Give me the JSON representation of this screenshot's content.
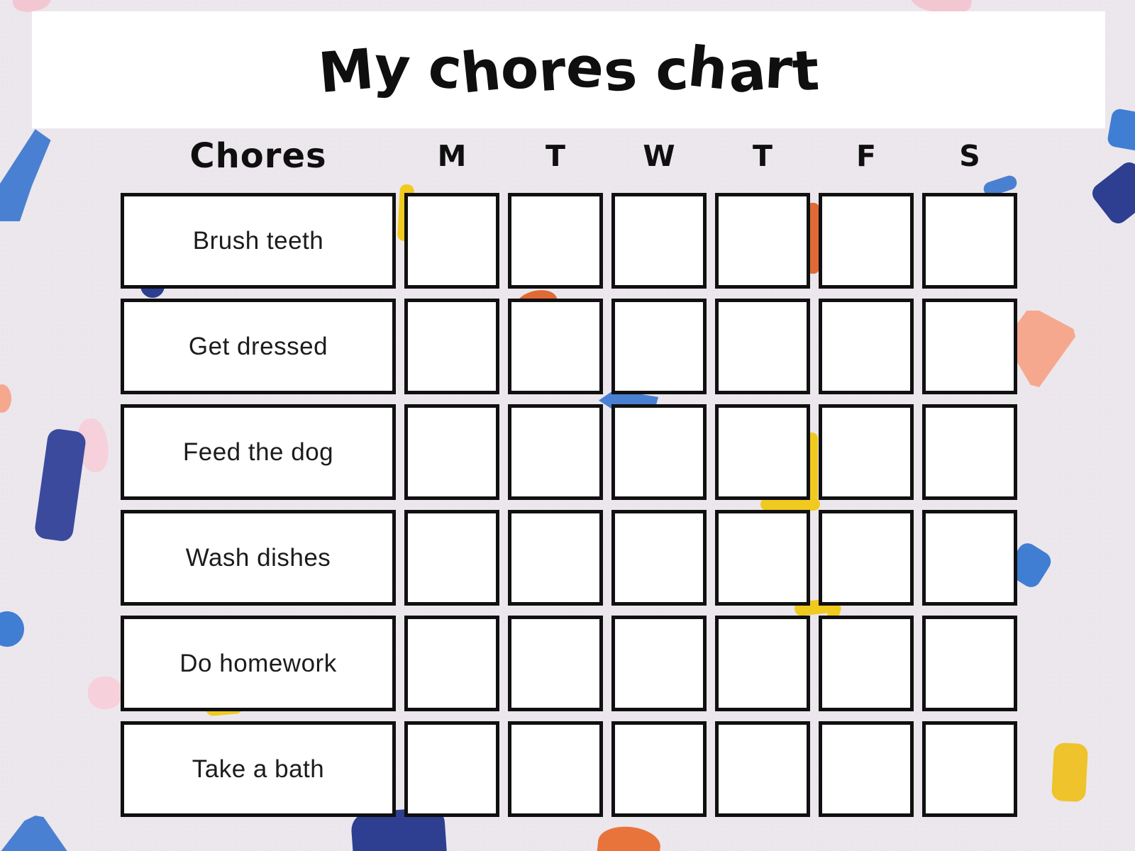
{
  "title": "My chores chart",
  "table": {
    "chores_column_header": "Chores",
    "day_headers": [
      "M",
      "T",
      "W",
      "T",
      "F",
      "S"
    ],
    "chores": [
      "Brush teeth",
      "Get dressed",
      "Feed the dog",
      "Wash dishes",
      "Do homework",
      "Take a bath"
    ],
    "checkbox_default_state": "unchecked"
  },
  "colors": {
    "page_background": "#ece7ed",
    "banner_background": "#ffffff",
    "grid_border": "#101010",
    "heading_text": "#0f0f0f",
    "label_text": "#1c1c1c",
    "confetti": {
      "blue": "#4a80d1",
      "bright_blue": "#3f7ed3",
      "navy": "#2e3f92",
      "indigo": "#3b4a9d",
      "orange": "#e8743c",
      "deep_orange": "#e06a35",
      "salmon": "#f6a88f",
      "pink": "#f3c7d2",
      "light_pink": "#f6d0da",
      "yellow": "#f0ca1f",
      "gold": "#eec32b"
    }
  }
}
